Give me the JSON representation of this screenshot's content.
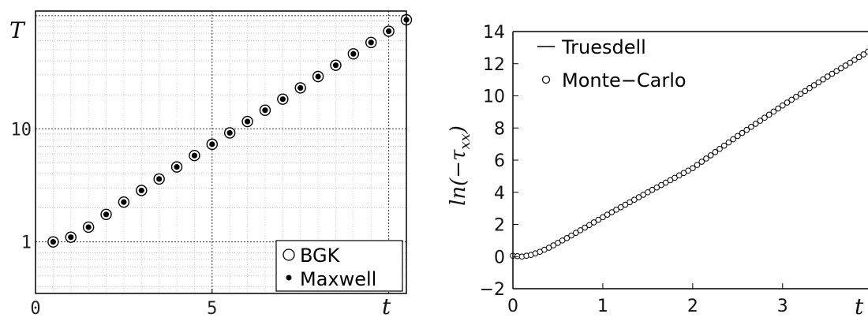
{
  "chart_data": [
    {
      "type": "scatter",
      "title": "",
      "xlabel": "t",
      "ylabel": "T",
      "yscale": "log",
      "xlim": [
        0,
        10.5
      ],
      "ylim": [
        0.35,
        110
      ],
      "x_ticks": [
        0,
        5
      ],
      "x_tick_labels": [
        "0",
        "5"
      ],
      "y_ticks": [
        1,
        10
      ],
      "y_tick_labels": [
        "1",
        "10"
      ],
      "grid": true,
      "legend_position": "bottom-right",
      "series": [
        {
          "name": "BGK",
          "marker": "open-circle",
          "x": [
            0.5,
            1.0,
            1.5,
            2.0,
            2.5,
            3.0,
            3.5,
            4.0,
            4.5,
            5.0,
            5.5,
            6.0,
            6.5,
            7.0,
            7.5,
            8.0,
            8.5,
            9.0,
            9.5,
            10.0,
            10.5
          ],
          "y": [
            1.0,
            1.1,
            1.35,
            1.75,
            2.25,
            2.85,
            3.6,
            4.6,
            5.8,
            7.3,
            9.2,
            11.6,
            14.6,
            18.3,
            23.0,
            29.0,
            36.5,
            46.0,
            58.0,
            73.0,
            92.0
          ]
        },
        {
          "name": "Maxwell",
          "marker": "filled-dot",
          "x": [
            0.5,
            1.0,
            1.5,
            2.0,
            2.5,
            3.0,
            3.5,
            4.0,
            4.5,
            5.0,
            5.5,
            6.0,
            6.5,
            7.0,
            7.5,
            8.0,
            8.5,
            9.0,
            9.5,
            10.0,
            10.5
          ],
          "y": [
            1.0,
            1.1,
            1.35,
            1.75,
            2.25,
            2.85,
            3.6,
            4.6,
            5.8,
            7.3,
            9.2,
            11.6,
            14.6,
            18.3,
            23.0,
            29.0,
            36.5,
            46.0,
            58.0,
            73.0,
            92.0
          ]
        }
      ]
    },
    {
      "type": "line",
      "title": "",
      "xlabel": "t",
      "ylabel": "ln(−τ_xx)",
      "ylabel_base": "ln(−τ",
      "ylabel_sub": "xx",
      "ylabel_close": ")",
      "xlim": [
        0,
        3.95
      ],
      "ylim": [
        -2,
        14
      ],
      "x_ticks": [
        0,
        1,
        2,
        3
      ],
      "x_tick_labels": [
        "0",
        "1",
        "2",
        "3"
      ],
      "y_ticks": [
        -2,
        0,
        2,
        4,
        6,
        8,
        10,
        12,
        14
      ],
      "y_tick_labels": [
        "−2",
        "0",
        "2",
        "4",
        "6",
        "8",
        "10",
        "12",
        "14"
      ],
      "grid": false,
      "legend_position": "top-left",
      "series": [
        {
          "name": "Truesdell",
          "marker": "line",
          "x": [
            0,
            0.1,
            0.2,
            0.3,
            0.4,
            0.5,
            0.6,
            0.8,
            1.0,
            1.5,
            2.0,
            2.5,
            3.0,
            3.5,
            3.95
          ],
          "y": [
            0.05,
            0.0,
            0.1,
            0.3,
            0.55,
            0.85,
            1.15,
            1.8,
            2.45,
            4.0,
            5.5,
            7.5,
            9.4,
            11.2,
            12.75
          ]
        },
        {
          "name": "Monte−Carlo",
          "marker": "open-circle",
          "x_start": 0,
          "x_step": 0.05,
          "count": 80,
          "y_at": {
            "x": [
              0,
              0.1,
              0.2,
              0.3,
              0.4,
              0.5,
              0.6,
              0.8,
              1.0,
              1.5,
              2.0,
              2.5,
              3.0,
              3.5,
              3.95
            ],
            "y": [
              0.05,
              0.0,
              0.1,
              0.3,
              0.55,
              0.85,
              1.15,
              1.8,
              2.45,
              4.0,
              5.5,
              7.5,
              9.4,
              11.2,
              12.75
            ]
          }
        }
      ]
    }
  ]
}
